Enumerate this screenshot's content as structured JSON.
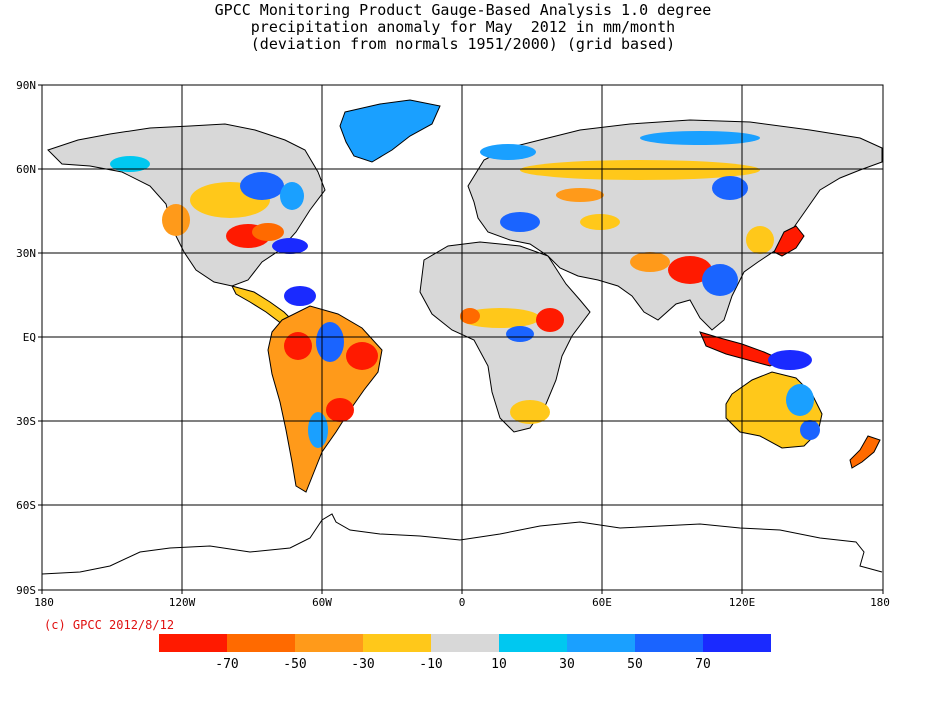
{
  "title": {
    "line1": "GPCC Monitoring Product Gauge-Based Analysis 1.0 degree",
    "line2": "precipitation anomaly for May  2012 in mm/month",
    "line3": "(deviation from normals 1951/2000) (grid based)"
  },
  "copyright": "(c) GPCC 2012/8/12",
  "map": {
    "lat_labels": [
      "90N",
      "60N",
      "30N",
      "EQ",
      "30S",
      "60S",
      "90S"
    ],
    "lon_labels": [
      "180",
      "120W",
      "60W",
      "0",
      "60E",
      "120E",
      "180"
    ]
  },
  "colorbar": {
    "colors": [
      "#ff1a00",
      "#ff6a00",
      "#ff9a1a",
      "#ffc81a",
      "#d8d8d8",
      "#00c8f0",
      "#1aa0ff",
      "#1a64ff",
      "#1a2aff"
    ],
    "labels": [
      "-70",
      "-50",
      "-30",
      "-10",
      "10",
      "30",
      "50",
      "70"
    ]
  }
}
